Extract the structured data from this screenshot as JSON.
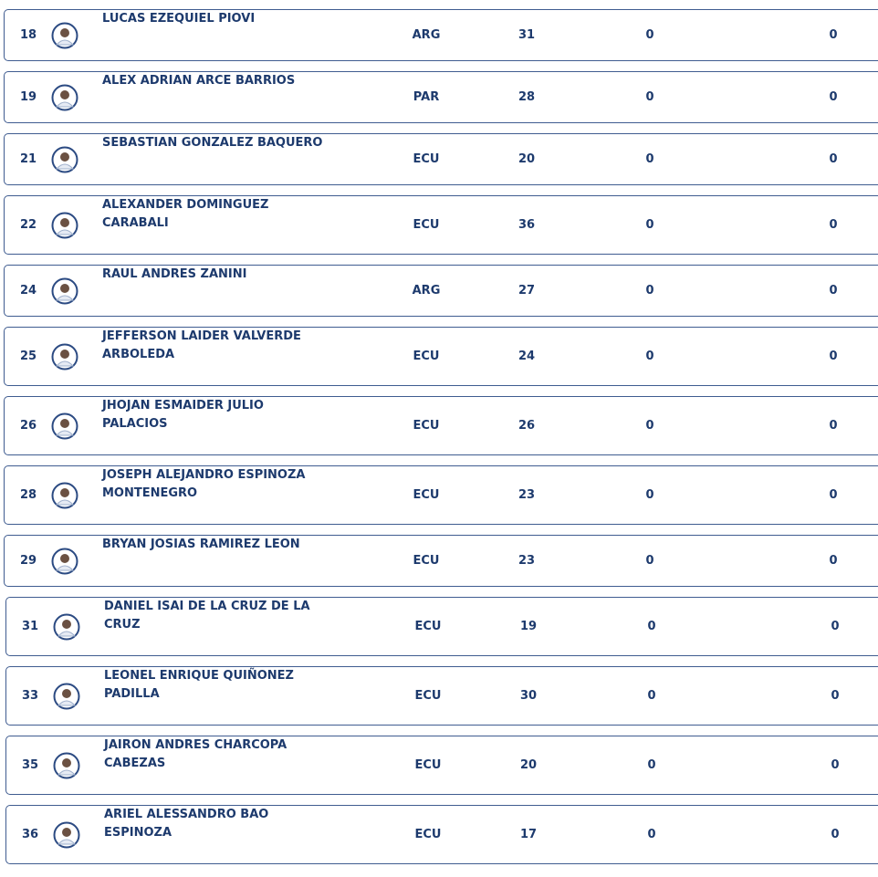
{
  "table": {
    "rows": [
      [
        "18",
        [
          "LUCAS EZEQUIEL PIOVI"
        ],
        "ARG",
        "31",
        "0",
        "0"
      ],
      [
        "19",
        [
          "ALEX ADRIAN ARCE BARRIOS"
        ],
        "PAR",
        "28",
        "0",
        "0"
      ],
      [
        "21",
        [
          "SEBASTIAN GONZALEZ BAQUERO"
        ],
        "ECU",
        "20",
        "0",
        "0"
      ],
      [
        "22",
        [
          "ALEXANDER DOMINGUEZ",
          "CARABALI"
        ],
        "ECU",
        "36",
        "0",
        "0"
      ],
      [
        "24",
        [
          "RAUL ANDRES ZANINI"
        ],
        "ARG",
        "27",
        "0",
        "0"
      ],
      [
        "25",
        [
          "JEFFERSON LAIDER VALVERDE",
          "ARBOLEDA"
        ],
        "ECU",
        "24",
        "0",
        "0"
      ],
      [
        "26",
        [
          "JHOJAN ESMAIDER JULIO",
          "PALACIOS"
        ],
        "ECU",
        "26",
        "0",
        "0"
      ],
      [
        "28",
        [
          "JOSEPH ALEJANDRO ESPINOZA",
          "MONTENEGRO"
        ],
        "ECU",
        "23",
        "0",
        "0"
      ],
      [
        "29",
        [
          "BRYAN JOSIAS RAMIREZ LEON"
        ],
        "ECU",
        "23",
        "0",
        "0"
      ],
      [
        "31",
        [
          "DANIEL ISAI DE LA CRUZ DE LA",
          "CRUZ"
        ],
        "ECU",
        "19",
        "0",
        "0"
      ],
      [
        "33",
        [
          "LEONEL ENRIQUE QUIÑONEZ",
          "PADILLA"
        ],
        "ECU",
        "30",
        "0",
        "0"
      ],
      [
        "35",
        [
          "JAIRON ANDRES CHARCOPA",
          "CABEZAS"
        ],
        "ECU",
        "20",
        "0",
        "0"
      ],
      [
        "36",
        [
          "ARIEL ALESSANDRO BAO",
          "ESPINOZA"
        ],
        "ECU",
        "17",
        "0",
        "0"
      ]
    ]
  }
}
